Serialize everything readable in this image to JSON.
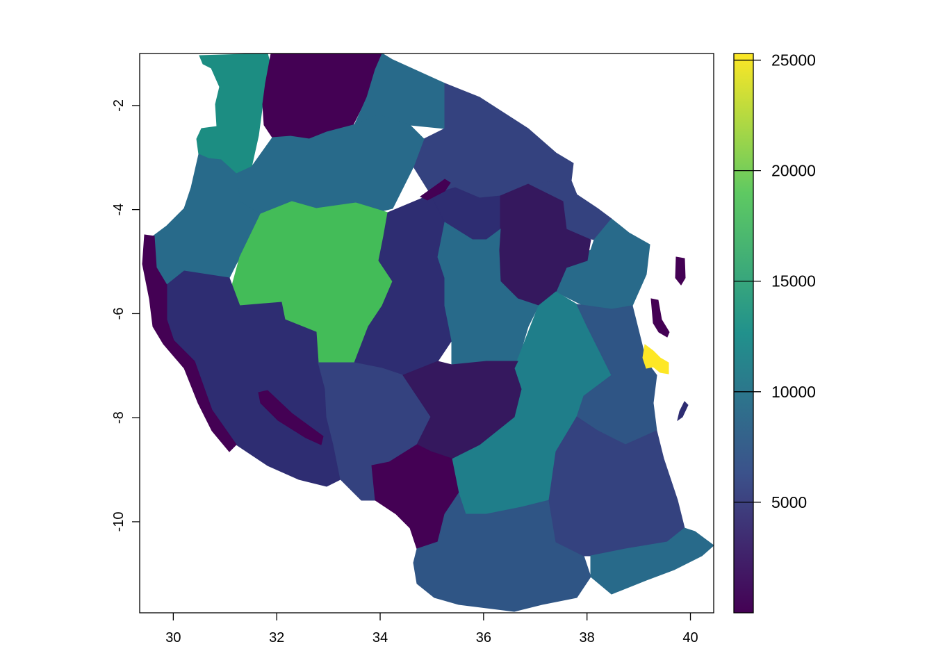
{
  "map": {
    "x_axis": {
      "range": [
        29.35,
        40.45
      ],
      "ticks": [
        {
          "value": 30,
          "label": "30"
        },
        {
          "value": 32,
          "label": "32"
        },
        {
          "value": 34,
          "label": "34"
        },
        {
          "value": 36,
          "label": "36"
        },
        {
          "value": 38,
          "label": "38"
        },
        {
          "value": 40,
          "label": "40"
        }
      ]
    },
    "y_axis": {
      "range": [
        -11.75,
        -1.0
      ],
      "ticks": [
        {
          "value": -2,
          "label": "-2"
        },
        {
          "value": -4,
          "label": "-4"
        },
        {
          "value": -6,
          "label": "-6"
        },
        {
          "value": -8,
          "label": "-8"
        },
        {
          "value": -10,
          "label": "-10"
        }
      ]
    },
    "legend": {
      "type": "continuous-colorbar",
      "palette": "viridis",
      "range": [
        0,
        25300
      ],
      "ticks": [
        {
          "value": 5000,
          "label": "5000"
        },
        {
          "value": 10000,
          "label": "10000"
        },
        {
          "value": 15000,
          "label": "15000"
        },
        {
          "value": 20000,
          "label": "20000"
        },
        {
          "value": 25000,
          "label": "25000"
        }
      ],
      "stops": [
        "#440154",
        "#3b528b",
        "#21918c",
        "#5ec962",
        "#fde725"
      ]
    },
    "colors": {
      "c1": "#440154",
      "c2": "#35185e",
      "c3": "#2e2d72",
      "c4": "#34427f",
      "c5": "#2f5585",
      "c6": "#286a8a",
      "c7": "#1f7e8a",
      "c8": "#1c8d82",
      "c9": "#43bc58",
      "c10": "#fde725"
    }
  }
}
